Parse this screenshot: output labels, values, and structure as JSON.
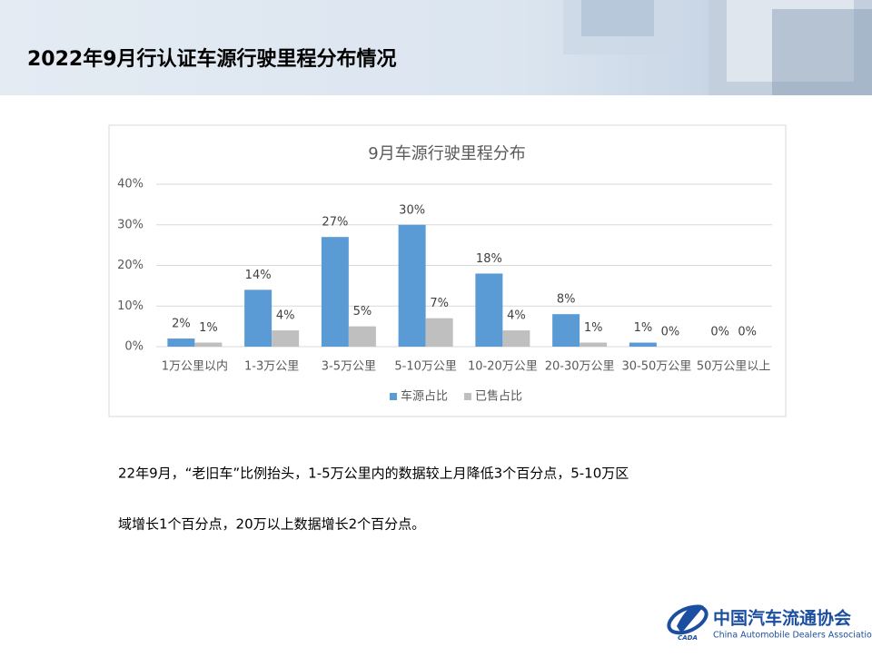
{
  "slide_title": "2022年9月行认证车源行驶里程分布情况",
  "chart_data": {
    "type": "bar",
    "title": "9月车源行驶里程分布",
    "categories": [
      "1万公里以内",
      "1-3万公里",
      "3-5万公里",
      "5-10万公里",
      "10-20万公里",
      "20-30万公里",
      "30-50万公里",
      "50万公里以上"
    ],
    "series": [
      {
        "name": "车源占比",
        "color": "#5b9bd5",
        "values": [
          2,
          14,
          27,
          30,
          18,
          8,
          1,
          0
        ],
        "value_labels": [
          "2%",
          "14%",
          "27%",
          "30%",
          "18%",
          "8%",
          "1%",
          "0%"
        ]
      },
      {
        "name": "已售占比",
        "color": "#bfbfbf",
        "values": [
          1,
          4,
          5,
          7,
          4,
          1,
          0,
          0
        ],
        "value_labels": [
          "1%",
          "4%",
          "5%",
          "7%",
          "4%",
          "1%",
          "0%",
          "0%"
        ]
      }
    ],
    "ylim": [
      0,
      40
    ],
    "yticks": [
      {
        "value": 0,
        "label": "0%"
      },
      {
        "value": 10,
        "label": "10%"
      },
      {
        "value": 20,
        "label": "20%"
      },
      {
        "value": 30,
        "label": "30%"
      },
      {
        "value": 40,
        "label": "40%"
      }
    ],
    "grid": true,
    "legend": "bottom"
  },
  "paragraph": {
    "lines": [
      "22年9月，“老旧车”比例抬头，1-5万公里内的数据较上月降低3个百分点，5-10万区",
      "域增长1个百分点，20万以上数据增长2个百分点。"
    ]
  },
  "logo": {
    "name": "中国汽车流通协会",
    "english": "China Automobile Dealers Association",
    "mark": "CADA"
  }
}
